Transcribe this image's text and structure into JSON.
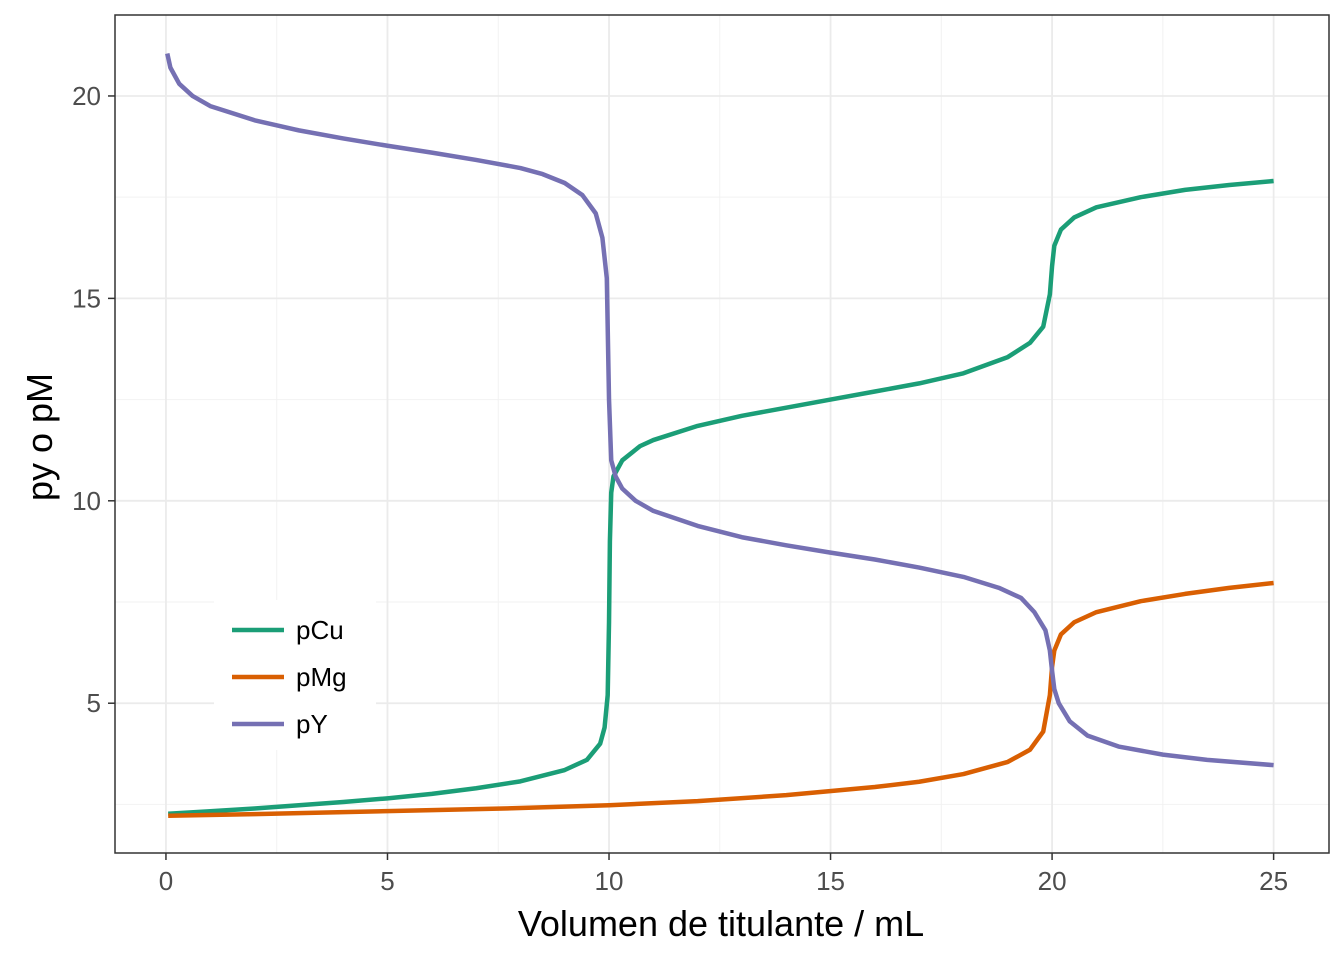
{
  "chart_data": {
    "type": "line",
    "title": "",
    "xlabel": "Volumen de titulante / mL",
    "ylabel": "py o pM",
    "xlim": [
      -1.15,
      26.25
    ],
    "ylim": [
      1.3,
      22.0
    ],
    "x_ticks": [
      0,
      5,
      10,
      15,
      20,
      25
    ],
    "y_ticks": [
      5,
      10,
      15,
      20
    ],
    "x_minor_ticks": [
      2.5,
      7.5,
      12.5,
      17.5,
      22.5
    ],
    "y_minor_ticks": [
      2.5,
      7.5,
      12.5,
      17.5
    ],
    "grid": true,
    "legend_position": "bottom-left",
    "series": [
      {
        "name": "pCu",
        "color": "#1B9E77",
        "points": [
          [
            0.05,
            2.27
          ],
          [
            1,
            2.33
          ],
          [
            2,
            2.4
          ],
          [
            3,
            2.48
          ],
          [
            4,
            2.56
          ],
          [
            5,
            2.65
          ],
          [
            6,
            2.76
          ],
          [
            7,
            2.9
          ],
          [
            8,
            3.07
          ],
          [
            9,
            3.35
          ],
          [
            9.5,
            3.6
          ],
          [
            9.8,
            4.0
          ],
          [
            9.9,
            4.4
          ],
          [
            9.97,
            5.2
          ],
          [
            10.0,
            7.0
          ],
          [
            10.02,
            9.0
          ],
          [
            10.05,
            10.2
          ],
          [
            10.1,
            10.6
          ],
          [
            10.3,
            11.0
          ],
          [
            10.7,
            11.35
          ],
          [
            11,
            11.5
          ],
          [
            12,
            11.85
          ],
          [
            13,
            12.1
          ],
          [
            14,
            12.3
          ],
          [
            15,
            12.5
          ],
          [
            16,
            12.7
          ],
          [
            17,
            12.9
          ],
          [
            18,
            13.15
          ],
          [
            19,
            13.55
          ],
          [
            19.5,
            13.9
          ],
          [
            19.8,
            14.3
          ],
          [
            19.95,
            15.1
          ],
          [
            20.0,
            15.8
          ],
          [
            20.05,
            16.3
          ],
          [
            20.2,
            16.7
          ],
          [
            20.5,
            17.0
          ],
          [
            21,
            17.25
          ],
          [
            22,
            17.5
          ],
          [
            23,
            17.68
          ],
          [
            24,
            17.8
          ],
          [
            25,
            17.9
          ]
        ]
      },
      {
        "name": "pMg",
        "color": "#D95F02",
        "points": [
          [
            0.05,
            2.22
          ],
          [
            2,
            2.26
          ],
          [
            4,
            2.31
          ],
          [
            6,
            2.36
          ],
          [
            8,
            2.41
          ],
          [
            10,
            2.48
          ],
          [
            12,
            2.58
          ],
          [
            14,
            2.73
          ],
          [
            16,
            2.93
          ],
          [
            17,
            3.06
          ],
          [
            18,
            3.25
          ],
          [
            19,
            3.55
          ],
          [
            19.5,
            3.85
          ],
          [
            19.8,
            4.3
          ],
          [
            19.95,
            5.2
          ],
          [
            20.0,
            5.9
          ],
          [
            20.05,
            6.3
          ],
          [
            20.2,
            6.7
          ],
          [
            20.5,
            7.0
          ],
          [
            21,
            7.25
          ],
          [
            22,
            7.52
          ],
          [
            23,
            7.7
          ],
          [
            24,
            7.85
          ],
          [
            25,
            7.97
          ]
        ]
      },
      {
        "name": "pY",
        "color": "#7570B3",
        "points": [
          [
            0.03,
            21.05
          ],
          [
            0.1,
            20.7
          ],
          [
            0.3,
            20.3
          ],
          [
            0.6,
            20.0
          ],
          [
            1,
            19.75
          ],
          [
            2,
            19.4
          ],
          [
            3,
            19.15
          ],
          [
            4,
            18.95
          ],
          [
            5,
            18.77
          ],
          [
            6,
            18.6
          ],
          [
            7,
            18.42
          ],
          [
            8,
            18.22
          ],
          [
            8.5,
            18.07
          ],
          [
            9,
            17.85
          ],
          [
            9.4,
            17.55
          ],
          [
            9.7,
            17.1
          ],
          [
            9.85,
            16.5
          ],
          [
            9.95,
            15.5
          ],
          [
            10.0,
            12.5
          ],
          [
            10.05,
            11.0
          ],
          [
            10.15,
            10.6
          ],
          [
            10.3,
            10.3
          ],
          [
            10.6,
            10.0
          ],
          [
            11,
            9.75
          ],
          [
            12,
            9.38
          ],
          [
            13,
            9.1
          ],
          [
            14,
            8.9
          ],
          [
            15,
            8.72
          ],
          [
            16,
            8.55
          ],
          [
            17,
            8.35
          ],
          [
            18,
            8.12
          ],
          [
            18.8,
            7.85
          ],
          [
            19.3,
            7.6
          ],
          [
            19.6,
            7.25
          ],
          [
            19.85,
            6.8
          ],
          [
            19.95,
            6.3
          ],
          [
            20.0,
            5.8
          ],
          [
            20.05,
            5.35
          ],
          [
            20.15,
            5.0
          ],
          [
            20.4,
            4.55
          ],
          [
            20.8,
            4.2
          ],
          [
            21.5,
            3.93
          ],
          [
            22.5,
            3.73
          ],
          [
            23.5,
            3.6
          ],
          [
            25,
            3.47
          ]
        ]
      }
    ]
  }
}
